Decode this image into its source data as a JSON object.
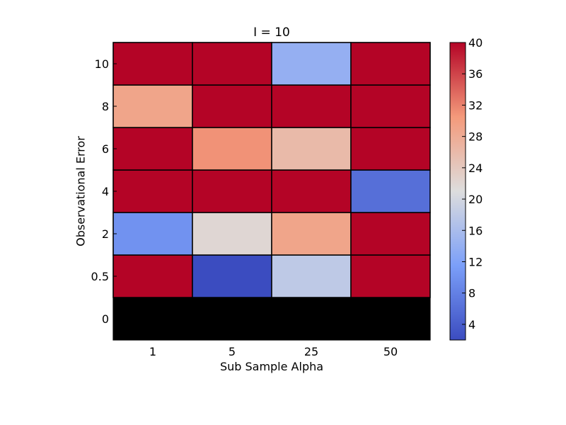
{
  "chart_data": {
    "type": "heatmap",
    "title": "I = 10",
    "xlabel": "Sub Sample Alpha",
    "ylabel": "Observational Error",
    "x_categories": [
      "1",
      "5",
      "25",
      "50"
    ],
    "y_categories": [
      "0",
      "0.5",
      "2",
      "4",
      "6",
      "8",
      "10"
    ],
    "values": [
      [
        null,
        null,
        null,
        null
      ],
      [
        40,
        2,
        18,
        40
      ],
      [
        10,
        22,
        29,
        40
      ],
      [
        40,
        40,
        40,
        6
      ],
      [
        40,
        31,
        26,
        40
      ],
      [
        29,
        40,
        40,
        40
      ],
      [
        40,
        40,
        14,
        40
      ]
    ],
    "missing_color": "#000000",
    "colormap": "coolwarm",
    "colorbar": {
      "vmin": 2,
      "vmax": 40,
      "ticks": [
        "4",
        "8",
        "12",
        "16",
        "20",
        "24",
        "28",
        "32",
        "36",
        "40"
      ]
    },
    "grid": false,
    "legend": "colorbar-right"
  }
}
